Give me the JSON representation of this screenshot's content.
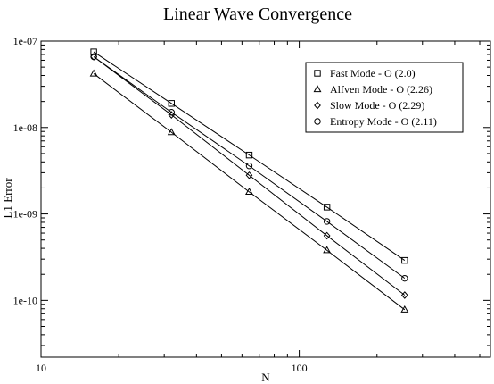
{
  "chart_data": {
    "type": "scatter",
    "title": "Linear Wave Convergence",
    "xlabel": "N",
    "ylabel": "L1 Error",
    "xscale": "log",
    "yscale": "log",
    "xlim": [
      10,
      550
    ],
    "ylim": [
      2.2e-11,
      1e-07
    ],
    "grid": false,
    "legend_position": "top-right",
    "x_ticks": [
      {
        "value": 10,
        "label": "10"
      },
      {
        "value": 100,
        "label": "100"
      }
    ],
    "y_ticks": [
      {
        "value": 1e-07,
        "label": "1e-07"
      },
      {
        "value": 1e-08,
        "label": "1e-08"
      },
      {
        "value": 1e-09,
        "label": "1e-09"
      },
      {
        "value": 1e-10,
        "label": "1e-10"
      }
    ],
    "series": [
      {
        "name": "Fast Mode - O (2.0)",
        "marker": "square",
        "x": [
          16,
          32,
          64,
          128,
          256
        ],
        "values": [
          7.5e-08,
          1.9e-08,
          4.8e-09,
          1.2e-09,
          2.9e-10
        ]
      },
      {
        "name": "Alfven Mode - O (2.26)",
        "marker": "triangle",
        "x": [
          16,
          32,
          64,
          128,
          256
        ],
        "values": [
          4.2e-08,
          8.8e-09,
          1.8e-09,
          3.8e-10,
          7.8e-11
        ]
      },
      {
        "name": "Slow Mode - O (2.29)",
        "marker": "diamond",
        "x": [
          16,
          32,
          64,
          128,
          256
        ],
        "values": [
          6.6e-08,
          1.4e-08,
          2.8e-09,
          5.6e-10,
          1.15e-10
        ]
      },
      {
        "name": "Entropy Mode - O (2.11)",
        "marker": "circle",
        "x": [
          16,
          32,
          64,
          128,
          256
        ],
        "values": [
          6.6e-08,
          1.5e-08,
          3.6e-09,
          8.2e-10,
          1.8e-10
        ]
      }
    ]
  }
}
